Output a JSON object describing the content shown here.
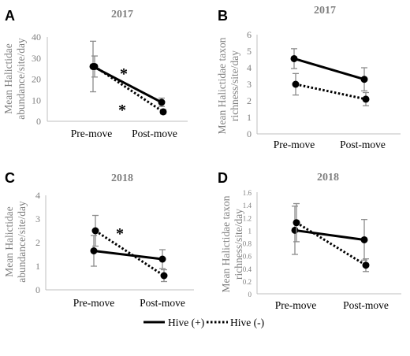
{
  "legend": [
    {
      "label": "Hive (+)",
      "style": "solid"
    },
    {
      "label": "Hive (-)",
      "style": "dotted"
    }
  ],
  "chart_data": [
    {
      "panel": "A",
      "type": "line",
      "title": "2017",
      "ylabel": "Mean Halictidae abundance/site/day",
      "categories": [
        "Pre-move",
        "Post-move"
      ],
      "ylim": [
        0,
        40
      ],
      "yticks": [
        "0",
        "10",
        "20",
        "30",
        "40"
      ],
      "series": [
        {
          "name": "Hive (+)",
          "style": "solid",
          "values": [
            26,
            9
          ],
          "err": [
            12,
            2
          ]
        },
        {
          "name": "Hive (-)",
          "style": "dotted",
          "values": [
            26,
            4.5
          ],
          "err": [
            5,
            1
          ]
        }
      ],
      "annotations": [
        "*",
        "*"
      ]
    },
    {
      "panel": "B",
      "type": "line",
      "title": "2017",
      "ylabel": "Mean Halictidae taxon richness/site/day",
      "categories": [
        "Pre-move",
        "Post-move"
      ],
      "ylim": [
        0,
        6
      ],
      "yticks": [
        "0",
        "1",
        "2",
        "3",
        "4",
        "5",
        "6"
      ],
      "series": [
        {
          "name": "Hive (+)",
          "style": "solid",
          "values": [
            4.55,
            3.3
          ],
          "err": [
            0.6,
            0.7
          ]
        },
        {
          "name": "Hive (-)",
          "style": "dotted",
          "values": [
            3.0,
            2.1
          ],
          "err": [
            0.65,
            0.4
          ]
        }
      ],
      "annotations": []
    },
    {
      "panel": "C",
      "type": "line",
      "title": "2018",
      "ylabel": "Mean Halictidae abundance/site/day",
      "categories": [
        "Pre-move",
        "Post-move"
      ],
      "ylim": [
        0,
        4
      ],
      "yticks": [
        "0",
        "1",
        "2",
        "3",
        "4"
      ],
      "series": [
        {
          "name": "Hive (+)",
          "style": "solid",
          "values": [
            1.65,
            1.3
          ],
          "err": [
            0.65,
            0.4
          ]
        },
        {
          "name": "Hive (-)",
          "style": "dotted",
          "values": [
            2.5,
            0.6
          ],
          "err": [
            0.65,
            0.25
          ]
        }
      ],
      "annotations": [
        "*"
      ]
    },
    {
      "panel": "D",
      "type": "line",
      "title": "2018",
      "ylabel": "Mean Halictidae taxon richness/site/day",
      "categories": [
        "Pre-move",
        "Post-move"
      ],
      "ylim": [
        0,
        1.6
      ],
      "yticks": [
        "0",
        "0.2",
        "0.4",
        "0.6",
        "0.8",
        "1",
        "1.2",
        "1.4",
        "1.6"
      ],
      "series": [
        {
          "name": "Hive (+)",
          "style": "solid",
          "values": [
            1.0,
            0.85
          ],
          "err": [
            0.38,
            0.32
          ]
        },
        {
          "name": "Hive (-)",
          "style": "dotted",
          "values": [
            1.12,
            0.45
          ],
          "err": [
            0.3,
            0.1
          ]
        }
      ],
      "annotations": []
    }
  ]
}
